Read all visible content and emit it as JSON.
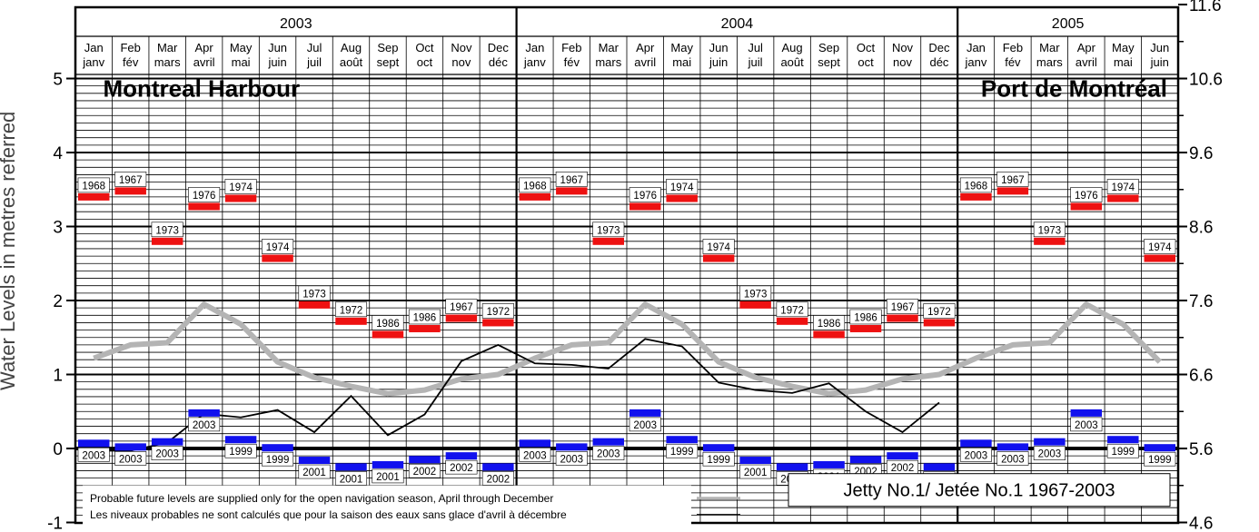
{
  "chart_data": {
    "type": "line",
    "title_left": "Montreal Harbour",
    "title_right": "Port de Montréal",
    "ylabel_left": "Water Levels in metres referred",
    "ylabel_right": "",
    "y_left_ticks": [
      "-1",
      "0",
      "1",
      "2",
      "3",
      "4",
      "5"
    ],
    "y_right_ticks": [
      "4.6",
      "5.6",
      "6.6",
      "7.6",
      "8.6",
      "9.6",
      "10.6",
      "11.6"
    ],
    "ylim_left": [
      -1,
      6
    ],
    "years": [
      {
        "label": "2003",
        "months": 12
      },
      {
        "label": "2004",
        "months": 12
      },
      {
        "label": "2005",
        "months": 6
      }
    ],
    "month_en": [
      "Jan",
      "Feb",
      "Mar",
      "Apr",
      "May",
      "Jun",
      "Jul",
      "Aug",
      "Sep",
      "Oct",
      "Nov",
      "Dec"
    ],
    "month_fr": [
      "janv",
      "fév",
      "mars",
      "avril",
      "mai",
      "juin",
      "juil",
      "août",
      "sept",
      "oct",
      "nov",
      "déc"
    ],
    "record_high": {
      "values": [
        3.4,
        3.48,
        2.8,
        3.27,
        3.38,
        2.57,
        1.94,
        1.72,
        1.54,
        1.62,
        1.76,
        1.7
      ],
      "years": [
        "1968",
        "1967",
        "1973",
        "1976",
        "1974",
        "1974",
        "1973",
        "1972",
        "1986",
        "1986",
        "1967",
        "1972"
      ],
      "color": "#ee1111"
    },
    "record_low": {
      "values": [
        0.07,
        0.02,
        0.09,
        0.48,
        0.12,
        0.01,
        -0.16,
        -0.25,
        -0.22,
        -0.15,
        -0.1,
        -0.25
      ],
      "years": [
        "2003",
        "2003",
        "2003",
        "2003",
        "1999",
        "1999",
        "2001",
        "2001",
        "2001",
        "2002",
        "2002",
        "2002"
      ],
      "color": "#1111ee"
    },
    "series": [
      {
        "role": "mean",
        "values": [
          1.22,
          1.4,
          1.43,
          1.95,
          1.68,
          1.17,
          0.96,
          0.84,
          0.74,
          0.79,
          0.94,
          1.0,
          1.22,
          1.4,
          1.43,
          1.95,
          1.68,
          1.17,
          0.96,
          0.84,
          0.74,
          0.79,
          0.94,
          1.0,
          1.22,
          1.4,
          1.43,
          1.95,
          1.68,
          1.17
        ],
        "color": "#b4b4b4"
      },
      {
        "role": "observed",
        "values": [
          -0.03,
          -0.03,
          0.08,
          0.47,
          0.42,
          0.52,
          0.22,
          0.71,
          0.18,
          0.46,
          1.18,
          1.4,
          1.15,
          1.13,
          1.08,
          1.48,
          1.38,
          0.89,
          0.79,
          0.75,
          0.88,
          0.5,
          0.22,
          0.62
        ],
        "color": "#000000"
      }
    ],
    "legend": [
      "Probable future levels are supplied only for the open navigation season, April through December",
      "Les niveaux probables ne sont calculés que pour la saison des eaux sans glace d'avril à décembre"
    ],
    "station": "Jetty  No.1/ Jetée No.1     1967-2003",
    "grid": true
  }
}
